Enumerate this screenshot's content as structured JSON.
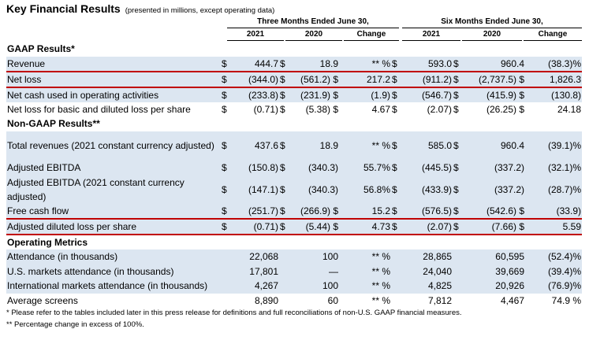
{
  "title": "Key Financial Results",
  "subtitle": "(presented in millions, except operating data)",
  "periods": {
    "three_months": "Three Months Ended June 30,",
    "six_months": "Six Months Ended June 30,"
  },
  "columns": {
    "y2021": "2021",
    "y2020": "2020",
    "change": "Change"
  },
  "rows": [
    {
      "label": "GAAP Results*",
      "section": true
    },
    {
      "label": "Revenue",
      "d1": "$",
      "v1": "444.7",
      "d2": "$",
      "v2": "18.9",
      "c3": "** %",
      "d4": "$",
      "v4": "593.0",
      "d5": "$",
      "v5": "960.4",
      "c6": "(38.3)%"
    },
    {
      "label": "Net loss",
      "d1": "$",
      "v1": "(344.0)",
      "d2": "$",
      "v2": "(561.2) $",
      "c3": "217.2",
      "d4": "$",
      "v4": "(911.2)",
      "d5": "$",
      "v5": "(2,737.5) $",
      "c6": "1,826.3"
    },
    {
      "label": "Net cash used in operating activities",
      "d1": "$",
      "v1": "(233.8)",
      "d2": "$",
      "v2": "(231.9) $",
      "c3": "(1.9)",
      "d4": "$",
      "v4": "(546.7)",
      "d5": "$",
      "v5": "(415.9) $",
      "c6": "(130.8)"
    },
    {
      "label": "Net loss for basic and diluted loss per share",
      "d1": "$",
      "v1": "(0.71)",
      "d2": "$",
      "v2": "(5.38) $",
      "c3": "4.67",
      "d4": "$",
      "v4": "(2.07)",
      "d5": "$",
      "v5": "(26.25) $",
      "c6": "24.18"
    },
    {
      "label": "Non-GAAP Results**",
      "section": true
    },
    {
      "label": "Total revenues (2021 constant currency adjusted)",
      "d1": "$",
      "v1": "437.6",
      "d2": "$",
      "v2": "18.9",
      "c3": "** %",
      "d4": "$",
      "v4": "585.0",
      "d5": "$",
      "v5": "960.4",
      "c6": "(39.1)%"
    },
    {
      "label": "Adjusted EBITDA",
      "d1": "$",
      "v1": "(150.8)",
      "d2": "$",
      "v2": "(340.3)",
      "c3": "55.7%",
      "d4": "$",
      "v4": "(445.5)",
      "d5": "$",
      "v5": "(337.2)",
      "c6": "(32.1)%"
    },
    {
      "label": "Adjusted EBITDA (2021 constant currency adjusted)",
      "d1": "$",
      "v1": "(147.1)",
      "d2": "$",
      "v2": "(340.3)",
      "c3": "56.8%",
      "d4": "$",
      "v4": "(433.9)",
      "d5": "$",
      "v5": "(337.2)",
      "c6": "(28.7)%"
    },
    {
      "label": "Free cash flow",
      "d1": "$",
      "v1": "(251.7)",
      "d2": "$",
      "v2": "(266.9) $",
      "c3": "15.2",
      "d4": "$",
      "v4": "(576.5)",
      "d5": "$",
      "v5": "(542.6) $",
      "c6": "(33.9)"
    },
    {
      "label": "Adjusted diluted loss per share",
      "d1": "$",
      "v1": "(0.71)",
      "d2": "$",
      "v2": "(5.44) $",
      "c3": "4.73",
      "d4": "$",
      "v4": "(2.07)",
      "d5": "$",
      "v5": "(7.66) $",
      "c6": "5.59"
    },
    {
      "label": "Operating Metrics",
      "section": true
    },
    {
      "label": "Attendance (in thousands)",
      "v1": "22,068",
      "v2": "100",
      "c3": "** %",
      "v4": "28,865",
      "v5": "60,595",
      "c6": "(52.4)%"
    },
    {
      "label": "U.S. markets attendance (in thousands)",
      "v1": "17,801",
      "v2": "—",
      "c3": "** %",
      "v4": "24,040",
      "v5": "39,669",
      "c6": "(39.4)%"
    },
    {
      "label": "International markets attendance (in thousands)",
      "v1": "4,267",
      "v2": "100",
      "c3": "** %",
      "v4": "4,825",
      "v5": "20,926",
      "c6": "(76.9)%"
    },
    {
      "label": "Average screens",
      "v1": "8,890",
      "v2": "60",
      "c3": "** %",
      "v4": "7,812",
      "v5": "4,467",
      "c6": "74.9 %"
    }
  ],
  "footnotes": [
    "* Please refer to the tables included later in this press release for definitions and full reconciliations of non-U.S. GAAP financial measures.",
    "** Percentage change in excess of 100%."
  ]
}
